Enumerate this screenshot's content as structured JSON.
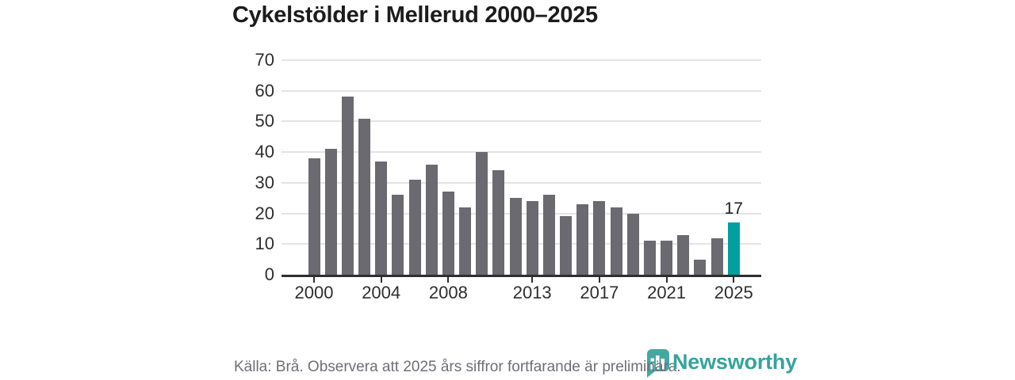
{
  "title": "Cykelstölder i Mellerud 2000–2025",
  "chart_data": {
    "type": "bar",
    "title": "Cykelstölder i Mellerud 2000–2025",
    "categories": [
      "2000",
      "2001",
      "2002",
      "2003",
      "2004",
      "2005",
      "2006",
      "2007",
      "2008",
      "2009",
      "2010",
      "2011",
      "2012",
      "2013",
      "2014",
      "2015",
      "2016",
      "2017",
      "2018",
      "2019",
      "2020",
      "2021",
      "2022",
      "2023",
      "2024",
      "2025"
    ],
    "values": [
      38,
      41,
      58,
      51,
      37,
      26,
      31,
      36,
      27,
      22,
      40,
      34,
      25,
      24,
      26,
      19,
      23,
      24,
      22,
      20,
      11,
      11,
      13,
      5,
      12,
      17
    ],
    "highlighted_category": "2025",
    "highlighted_value_label": "17",
    "ylim": [
      0,
      70
    ],
    "yticks": [
      0,
      10,
      20,
      30,
      40,
      50,
      60,
      70
    ],
    "xtick_labels": [
      "2000",
      "2004",
      "2008",
      "2013",
      "2017",
      "2021",
      "2025"
    ],
    "grid": "horizontal",
    "legend": "none",
    "xlabel": "",
    "ylabel": "",
    "colors": {
      "bar": "#6a6a70",
      "highlight": "#00a0a0",
      "gridline": "#e4e4e6",
      "axis": "#2e2e2e"
    }
  },
  "footer": {
    "source_note": "Källa: Brå. Observera att 2025 års siffror fortfarande är preliminära."
  },
  "branding": {
    "name": "Newsworthy",
    "logo_icon": "bar-chart-speech-bubble",
    "color": "#36a39c"
  }
}
